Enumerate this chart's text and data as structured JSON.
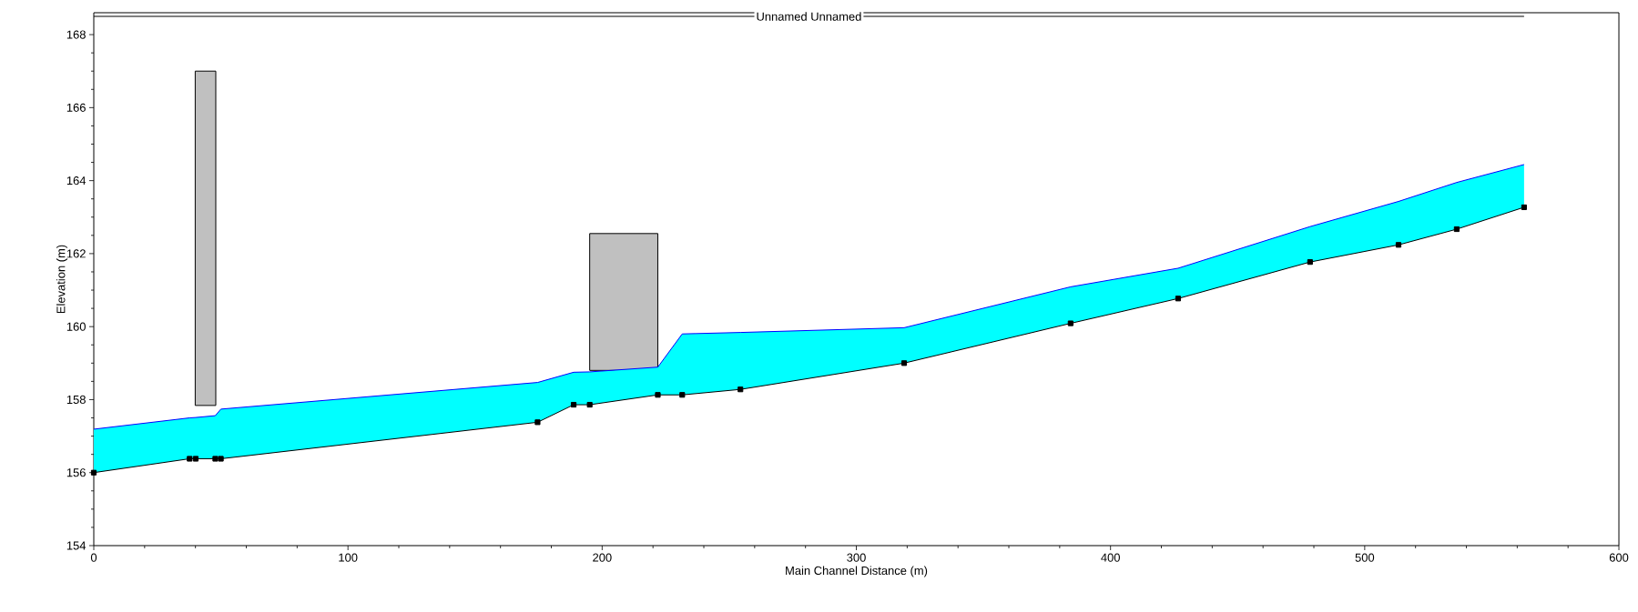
{
  "chart_data": {
    "type": "line",
    "xlabel": "Main Channel Distance (m)",
    "ylabel": "Elevation (m)",
    "xlim": [
      0,
      600
    ],
    "ylim": [
      154,
      168.6
    ],
    "xticks": [
      0,
      100,
      200,
      300,
      400,
      500,
      600
    ],
    "yticks": [
      154,
      156,
      158,
      160,
      162,
      164,
      166,
      168
    ],
    "series": [
      {
        "type": "histogram",
        "color": "#c0c0c0",
        "bins": [
          39.9,
          48,
          195.1,
          221.9
        ],
        "base": [
          157.84,
          null,
          158.8
        ],
        "values": [
          9.16,
          null,
          3.75
        ]
      },
      {
        "color": "#0000ff",
        "marker": "none",
        "x": [
          0,
          37.7,
          40.1,
          47.8,
          50.0,
          174.6,
          188.8,
          195.1,
          221.9,
          231.5,
          254.4,
          318.8,
          384.3,
          426.6,
          478.5,
          513.3,
          536.2,
          562.7
        ],
        "values": [
          157.19,
          157.5,
          157.51,
          157.56,
          157.74,
          158.47,
          158.75,
          158.76,
          158.89,
          159.8,
          159.84,
          159.97,
          161.09,
          161.6,
          162.74,
          163.43,
          163.95,
          164.44
        ],
        "lower": [
          156.0,
          156.38,
          156.38,
          156.38,
          156.38,
          157.38,
          157.86,
          157.86,
          158.13,
          158.13,
          158.28,
          159.0,
          160.09,
          160.77,
          161.77,
          162.24,
          162.67,
          163.27
        ],
        "upper": [
          157.19,
          157.5,
          157.51,
          157.56,
          157.74,
          158.47,
          158.75,
          158.76,
          158.89,
          159.8,
          159.84,
          159.97,
          161.09,
          161.6,
          162.74,
          163.43,
          163.95,
          164.44
        ]
      },
      {
        "color": "#000000",
        "marker": "square",
        "x": [
          0,
          37.7,
          40.1,
          47.8,
          50.0,
          174.6,
          188.8,
          195.1,
          221.9,
          231.5,
          254.4,
          318.8,
          384.3,
          426.6,
          478.5,
          513.3,
          536.2,
          562.7
        ],
        "values": [
          156.0,
          156.38,
          156.38,
          156.38,
          156.38,
          157.38,
          157.86,
          157.86,
          158.13,
          158.13,
          158.28,
          159.0,
          160.09,
          160.77,
          161.77,
          162.24,
          162.67,
          163.27
        ]
      },
      {
        "name": "Unnamed Unnamed",
        "color": "#000000",
        "marker": "none",
        "x": [
          0,
          562.7
        ],
        "values": [
          168.5,
          168.5
        ]
      }
    ]
  }
}
